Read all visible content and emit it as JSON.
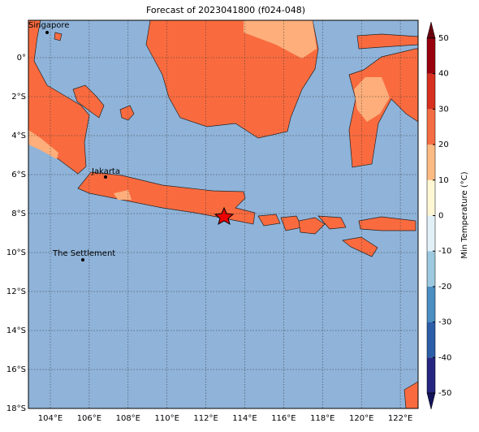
{
  "map": {
    "title": "Forecast of 2023041800 (f024-048)",
    "lon_ticks": [
      "104°E",
      "106°E",
      "108°E",
      "110°E",
      "112°E",
      "114°E",
      "116°E",
      "118°E",
      "120°E",
      "122°E"
    ],
    "lat_ticks": [
      "0°",
      "2°S",
      "4°S",
      "6°S",
      "8°S",
      "10°S",
      "12°S",
      "14°S",
      "16°S",
      "18°S"
    ],
    "places": [
      "Singapore",
      "Jakarta",
      "The Settlement"
    ],
    "colorbar": {
      "label": "Min Temperature (°C)",
      "ticks": [
        -50,
        -40,
        -30,
        -20,
        -10,
        0,
        10,
        20,
        30,
        40,
        50
      ],
      "colors": [
        "#262680",
        "#2c5ea8",
        "#4a8ec2",
        "#9dc9e0",
        "#e2f1f8",
        "#fff7d4",
        "#fdbb84",
        "#f46d43",
        "#d7301f",
        "#99000d"
      ],
      "under_color": "#14145a",
      "over_color": "#67000d"
    }
  }
}
